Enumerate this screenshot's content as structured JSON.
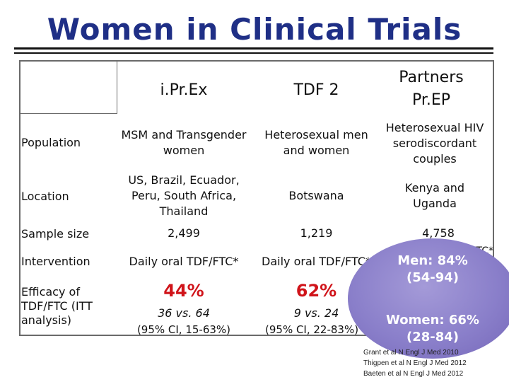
{
  "title": "Women in Clinical Trials",
  "table": {
    "columns": [
      "i.Pr.Ex",
      "TDF 2",
      "Partners Pr.EP"
    ],
    "rows": [
      {
        "label": "Population",
        "values": [
          "MSM and Transgender women",
          "Heterosexual men and women",
          "Heterosexual HIV serodiscordant couples"
        ]
      },
      {
        "label": "Location",
        "values": [
          "US, Brazil, Ecuador, Peru, South Africa, Thailand",
          "Botswana",
          "Kenya and Uganda"
        ]
      },
      {
        "label": "Sample size",
        "values": [
          "2,499",
          "1,219",
          "4,758"
        ]
      },
      {
        "label": "Intervention",
        "values": [
          "Daily oral TDF/FTC*",
          "Daily oral TDF/FTC*",
          "Daily oral TDF or TDF/FTC*"
        ]
      },
      {
        "label": "Efficacy of TDF/FTC (ITT analysis)",
        "efficacy": [
          "44%",
          "62%",
          ""
        ],
        "detail_1": [
          "36 vs. 64",
          "9 vs. 24",
          ""
        ],
        "detail_2": [
          "(95% CI, 15-63%)",
          "(95% CI, 22-83%)",
          ""
        ]
      }
    ]
  },
  "callout": {
    "men_line1": "Men: 84%",
    "men_line2": "(54-94)",
    "women_line1": "Women: 66%",
    "women_line2": "(28-84)",
    "color": "#8a7fca"
  },
  "references": [
    "Grant et al N Engl J Med 2010",
    "Thigpen et al N Engl J Med 2012",
    "Baeten et al N Engl J Med 2012"
  ],
  "colors": {
    "title": "#1f2f86",
    "efficacy": "#d0141a"
  }
}
